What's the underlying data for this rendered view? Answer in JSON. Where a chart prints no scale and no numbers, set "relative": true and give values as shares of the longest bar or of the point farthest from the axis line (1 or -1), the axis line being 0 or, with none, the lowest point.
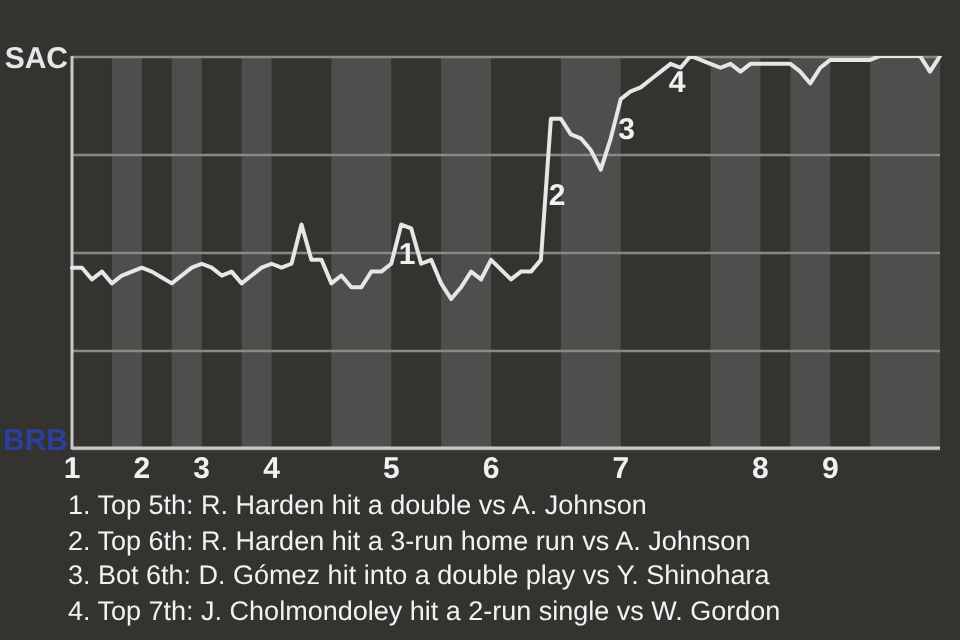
{
  "chart_data": {
    "type": "line",
    "relative": true,
    "categories": [
      "1",
      null,
      null,
      null,
      null,
      null,
      null,
      "2",
      null,
      null,
      null,
      null,
      null,
      "3",
      null,
      null,
      null,
      null,
      null,
      null,
      "4",
      null,
      null,
      null,
      null,
      null,
      null,
      null,
      null,
      null,
      null,
      null,
      "5",
      null,
      null,
      null,
      null,
      null,
      null,
      null,
      null,
      null,
      "6",
      null,
      null,
      null,
      null,
      null,
      null,
      null,
      null,
      null,
      null,
      null,
      null,
      "7",
      null,
      null,
      null,
      null,
      null,
      null,
      null,
      null,
      null,
      null,
      null,
      null,
      null,
      "8",
      null,
      null,
      null,
      null,
      null,
      null,
      "9",
      null,
      null,
      null,
      null,
      null,
      null,
      null,
      null,
      null,
      null,
      null
    ],
    "series": [
      {
        "color": "#e6e6e6",
        "values": [
          0.46,
          0.46,
          0.43,
          0.45,
          0.42,
          0.44,
          0.45,
          0.46,
          0.45,
          0.435,
          0.42,
          0.44,
          0.46,
          0.47,
          0.46,
          0.44,
          0.45,
          0.42,
          0.44,
          0.46,
          0.47,
          0.46,
          0.47,
          0.57,
          0.48,
          0.48,
          0.42,
          0.44,
          0.41,
          0.41,
          0.45,
          0.45,
          0.47,
          0.57,
          0.56,
          0.47,
          0.48,
          0.42,
          0.38,
          0.41,
          0.45,
          0.43,
          0.48,
          0.455,
          0.43,
          0.45,
          0.45,
          0.48,
          0.84,
          0.84,
          0.8,
          0.79,
          0.76,
          0.71,
          0.79,
          0.89,
          0.91,
          0.92,
          0.94,
          0.96,
          0.98,
          0.97,
          1,
          0.99,
          0.98,
          0.97,
          0.98,
          0.96,
          0.98,
          0.98,
          0.98,
          0.98,
          0.98,
          0.96,
          0.93,
          0.97,
          0.99,
          0.99,
          0.99,
          0.99,
          0.99,
          1,
          1,
          1,
          1,
          1,
          0.96,
          1
        ]
      }
    ],
    "grid": "y",
    "marker": "none",
    "annotations": [
      "SAC",
      "BRB",
      "1",
      "2",
      "3",
      "4",
      "1. Top 5th: R. Harden hit a double vs A. Johnson",
      "2. Top 6th: R. Harden hit a 3-run home run vs A. Johnson",
      "3. Bot 6th: D. Gómez hit into a double play vs Y. Shinohara",
      "4. Top 7th: J. Cholmondoley hit a 2-run single vs W. Gordon"
    ]
  }
}
